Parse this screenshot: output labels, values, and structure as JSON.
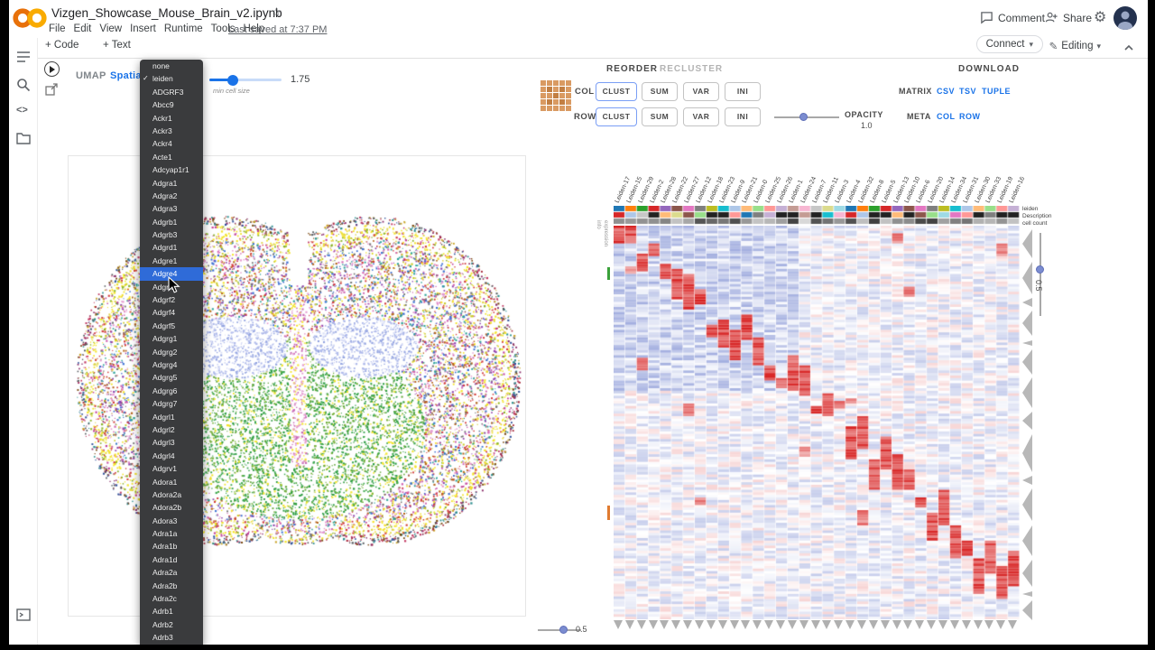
{
  "header": {
    "title": "Vizgen_Showcase_Mouse_Brain_v2.ipynb",
    "menus": [
      "File",
      "Edit",
      "View",
      "Insert",
      "Runtime",
      "Tools",
      "Help"
    ],
    "last_saved": "Last saved at 7:37 PM",
    "comment_label": "Comment",
    "share_label": "Share"
  },
  "toolbar": {
    "add_code": "+ Code",
    "add_text": "+ Text",
    "connect_label": "Connect",
    "editing_label": "Editing"
  },
  "widget": {
    "tabs": [
      "UMAP",
      "Spatial"
    ],
    "active_tab": "Spatial",
    "slider_value": "1.75",
    "slider_label": "min cell size"
  },
  "dropdown": {
    "checked": "leiden",
    "highlighted": "Adgre4",
    "items": [
      "none",
      "leiden",
      "ADGRF3",
      "Abcc9",
      "Ackr1",
      "Ackr3",
      "Ackr4",
      "Acte1",
      "Adcyap1r1",
      "Adgra1",
      "Adgra2",
      "Adgra3",
      "Adgrb1",
      "Adgrb3",
      "Adgrd1",
      "Adgre1",
      "Adgre4",
      "Adgrf1",
      "Adgrf2",
      "Adgrf4",
      "Adgrf5",
      "Adgrg1",
      "Adgrg2",
      "Adgrg4",
      "Adgrg5",
      "Adgrg6",
      "Adgrg7",
      "Adgrl1",
      "Adgrl2",
      "Adgrl3",
      "Adgrl4",
      "Adgrv1",
      "Adora1",
      "Adora2a",
      "Adora2b",
      "Adora3",
      "Adra1a",
      "Adra1b",
      "Adra1d",
      "Adra2a",
      "Adra2b",
      "Adra2c",
      "Adrb1",
      "Adrb2",
      "Adrb3"
    ]
  },
  "controls": {
    "reorder": "REORDER",
    "recluster": "RECLUSTER",
    "download": "DOWNLOAD",
    "col_label": "COL",
    "row_label": "ROW",
    "buttons": [
      "CLUST",
      "SUM",
      "VAR",
      "INI"
    ],
    "opacity_label": "OPACITY",
    "opacity_value": "1.0",
    "matrix_label": "MATRIX",
    "matrix_links": [
      "CSV",
      "TSV",
      "TUPLE"
    ],
    "meta_label": "META",
    "meta_links": [
      "COL",
      "ROW"
    ]
  },
  "heatmap": {
    "columns": [
      "Leiden-17",
      "Leiden-15",
      "Leiden-29",
      "Leiden-2",
      "Leiden-28",
      "Leiden-22",
      "Leiden-27",
      "Leiden-12",
      "Leiden-18",
      "Leiden-23",
      "Leiden-9",
      "Leiden-21",
      "Leiden-0",
      "Leiden-25",
      "Leiden-26",
      "Leiden-1",
      "Leiden-24",
      "Leiden-7",
      "Leiden-11",
      "Leiden-3",
      "Leiden-4",
      "Leiden-32",
      "Leiden-8",
      "Leiden-5",
      "Leiden-13",
      "Leiden-10",
      "Leiden-6",
      "Leiden-20",
      "Leiden-14",
      "Leiden-34",
      "Leiden-31",
      "Leiden-30",
      "Leiden-33",
      "Leiden-19",
      "Leiden-16"
    ],
    "side_labels": [
      "leiden",
      "Description",
      "cell count"
    ],
    "side_tabs": [
      "info",
      "expression"
    ],
    "row_slider_value": "0.5",
    "col_slider_value": "0.5",
    "palette": [
      "#1f77b4",
      "#ff7f0e",
      "#2ca02c",
      "#d62728",
      "#9467bd",
      "#8c564b",
      "#e377c2",
      "#7f7f7f",
      "#bcbd22",
      "#17becf",
      "#aec7e8",
      "#ffbb78",
      "#98df8a",
      "#ff9896",
      "#c5b0d5",
      "#c49c94",
      "#f7b6d2",
      "#c7c7c7",
      "#dbdb8d",
      "#9edae5"
    ]
  },
  "colors": {
    "accent": "#1a73e8",
    "logo": "#f9ab00",
    "dropdown_bg": "#3a3b3d",
    "highlight": "#2f6bd8",
    "heat_pos": "#d72323",
    "heat_neg": "#5f73c8"
  }
}
